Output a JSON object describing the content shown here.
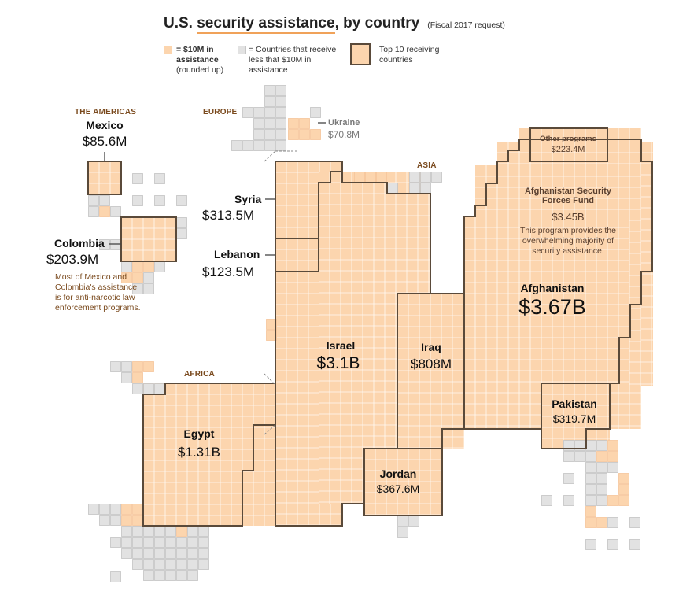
{
  "header": {
    "title_prefix": "U.S.",
    "title_underlined": "security assistance",
    "title_suffix": ", by country",
    "subtitle": "(Fiscal 2017 request)"
  },
  "legend": {
    "unit_bold": "= $10M in assistance",
    "unit_rest": "(rounded up)",
    "small": "= Countries that receive less that $10M in assistance",
    "top10": "Top 10 receiving countries"
  },
  "regions": {
    "americas": "THE AMERICAS",
    "europe": "EUROPE",
    "asia": "ASIA",
    "africa": "AFRICA"
  },
  "colors": {
    "unit_fill": "#fcd5ae",
    "small_fill": "#e2e2e2",
    "border": "#5a4a3a"
  },
  "chart_data": {
    "type": "table",
    "unit": "$10M per square (rounded up)",
    "countries": [
      {
        "name": "Afghanistan",
        "label": "$3.67B",
        "value_musd": 3670
      },
      {
        "name": "Israel",
        "label": "$3.1B",
        "value_musd": 3100
      },
      {
        "name": "Egypt",
        "label": "$1.31B",
        "value_musd": 1310
      },
      {
        "name": "Iraq",
        "label": "$808M",
        "value_musd": 808
      },
      {
        "name": "Jordan",
        "label": "$367.6M",
        "value_musd": 367.6
      },
      {
        "name": "Pakistan",
        "label": "$319.7M",
        "value_musd": 319.7
      },
      {
        "name": "Syria",
        "label": "$313.5M",
        "value_musd": 313.5
      },
      {
        "name": "Colombia",
        "label": "$203.9M",
        "value_musd": 203.9
      },
      {
        "name": "Lebanon",
        "label": "$123.5M",
        "value_musd": 123.5
      },
      {
        "name": "Mexico",
        "label": "$85.6M",
        "value_musd": 85.6
      },
      {
        "name": "Ukraine",
        "label": "$70.8M",
        "value_musd": 70.8
      }
    ],
    "afghanistan_programs": [
      {
        "name": "Afghanistan Security Forces Fund",
        "label": "$3.45B",
        "value_musd": 3450
      },
      {
        "name": "Other programs",
        "label": "$223.4M",
        "value_musd": 223.4
      }
    ]
  },
  "notes": {
    "americas": "Most of Mexico and Colombia's assistance is for anti-narcotic law enforcement programs.",
    "asff": "This program provides the overwhelming majority of security assistance."
  }
}
